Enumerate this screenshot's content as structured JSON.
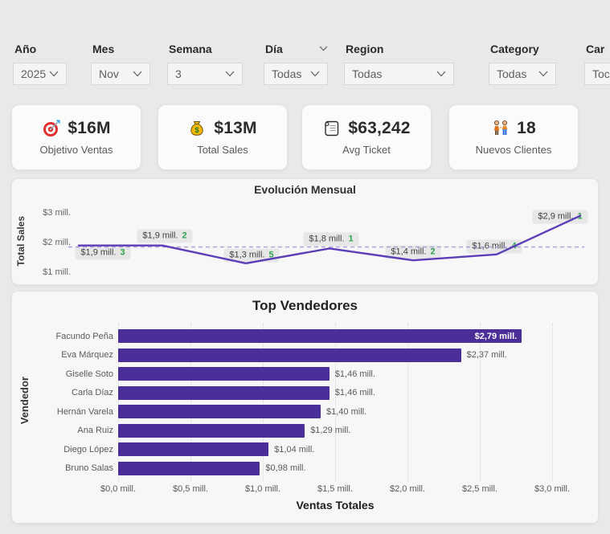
{
  "filters": [
    {
      "label": "Año",
      "value": "2025"
    },
    {
      "label": "Mes",
      "value": "Nov"
    },
    {
      "label": "Semana",
      "value": "3"
    },
    {
      "label": "Día",
      "value": "Todas"
    },
    {
      "label": "Region",
      "value": "Todas"
    },
    {
      "label": "Category",
      "value": "Todas"
    },
    {
      "label": "Car",
      "value": "Toc"
    }
  ],
  "kpis": [
    {
      "icon": "target-icon",
      "value": "$16M",
      "label": "Objetivo Ventas"
    },
    {
      "icon": "money-bag-icon",
      "value": "$13M",
      "label": "Total Sales"
    },
    {
      "icon": "receipt-icon",
      "value": "$63,242",
      "label": "Avg Ticket"
    },
    {
      "icon": "people-icon",
      "value": "18",
      "label": "Nuevos Clientes"
    }
  ],
  "chart_data": [
    {
      "type": "line",
      "title": "Evolución Mensual",
      "ylabel": "Total Sales",
      "yticks": [
        "$1 mill.",
        "$2 mill.",
        "$3 mill."
      ],
      "ylim": [
        0.75,
        3.25
      ],
      "x": [
        1,
        2,
        3,
        4,
        5,
        6,
        7
      ],
      "values": [
        1.9,
        1.9,
        1.3,
        1.8,
        1.4,
        1.6,
        2.9
      ],
      "point_labels": [
        "$1,9 mill.",
        "$1,9 mill.",
        "$1,3 mill.",
        "$1,8 mill.",
        "$1,4 mill.",
        "$1,6 mill.",
        "$2,9 mill."
      ],
      "badges": [
        "3",
        "2",
        "5",
        "1",
        "2",
        "4",
        "1"
      ],
      "reference_line": 1.85,
      "grid": false,
      "label_dx": [
        30,
        3,
        7,
        2,
        0,
        -3,
        -25
      ],
      "label_dy": [
        9,
        -12,
        -10,
        -11,
        -10,
        -10,
        1
      ]
    },
    {
      "type": "bar",
      "orientation": "horizontal",
      "title": "Top Vendedores",
      "xlabel": "Ventas Totales",
      "ylabel": "Vendedor",
      "categories": [
        "Facundo Peña",
        "Eva Márquez",
        "Giselle Soto",
        "Carla Díaz",
        "Hernán Varela",
        "Ana Ruiz",
        "Diego López",
        "Bruno Salas"
      ],
      "values": [
        2.79,
        2.37,
        1.46,
        1.46,
        1.4,
        1.29,
        1.04,
        0.98
      ],
      "value_labels": [
        "$2,79 mill.",
        "$2,37 mill.",
        "$1,46 mill.",
        "$1,46 mill.",
        "$1,40 mill.",
        "$1,29 mill.",
        "$1,04 mill.",
        "$0,98 mill."
      ],
      "xticks": [
        "$0,0 mill.",
        "$0,5 mill.",
        "$1,0 mill.",
        "$1,5 mill.",
        "$2,0 mill.",
        "$2,5 mill.",
        "$3,0 mill."
      ],
      "xlim": [
        0,
        3.3
      ],
      "grid": "vertical-dotted"
    }
  ],
  "colors": {
    "bar": "#4b2e97",
    "line": "#5b3eb8",
    "reference_line": "#a89fdd",
    "badge_green": "#2da44e",
    "page_bg": "#e9e9e9",
    "panel_bg": "#f7f7f7",
    "card_bg": "#fbfbfb"
  }
}
